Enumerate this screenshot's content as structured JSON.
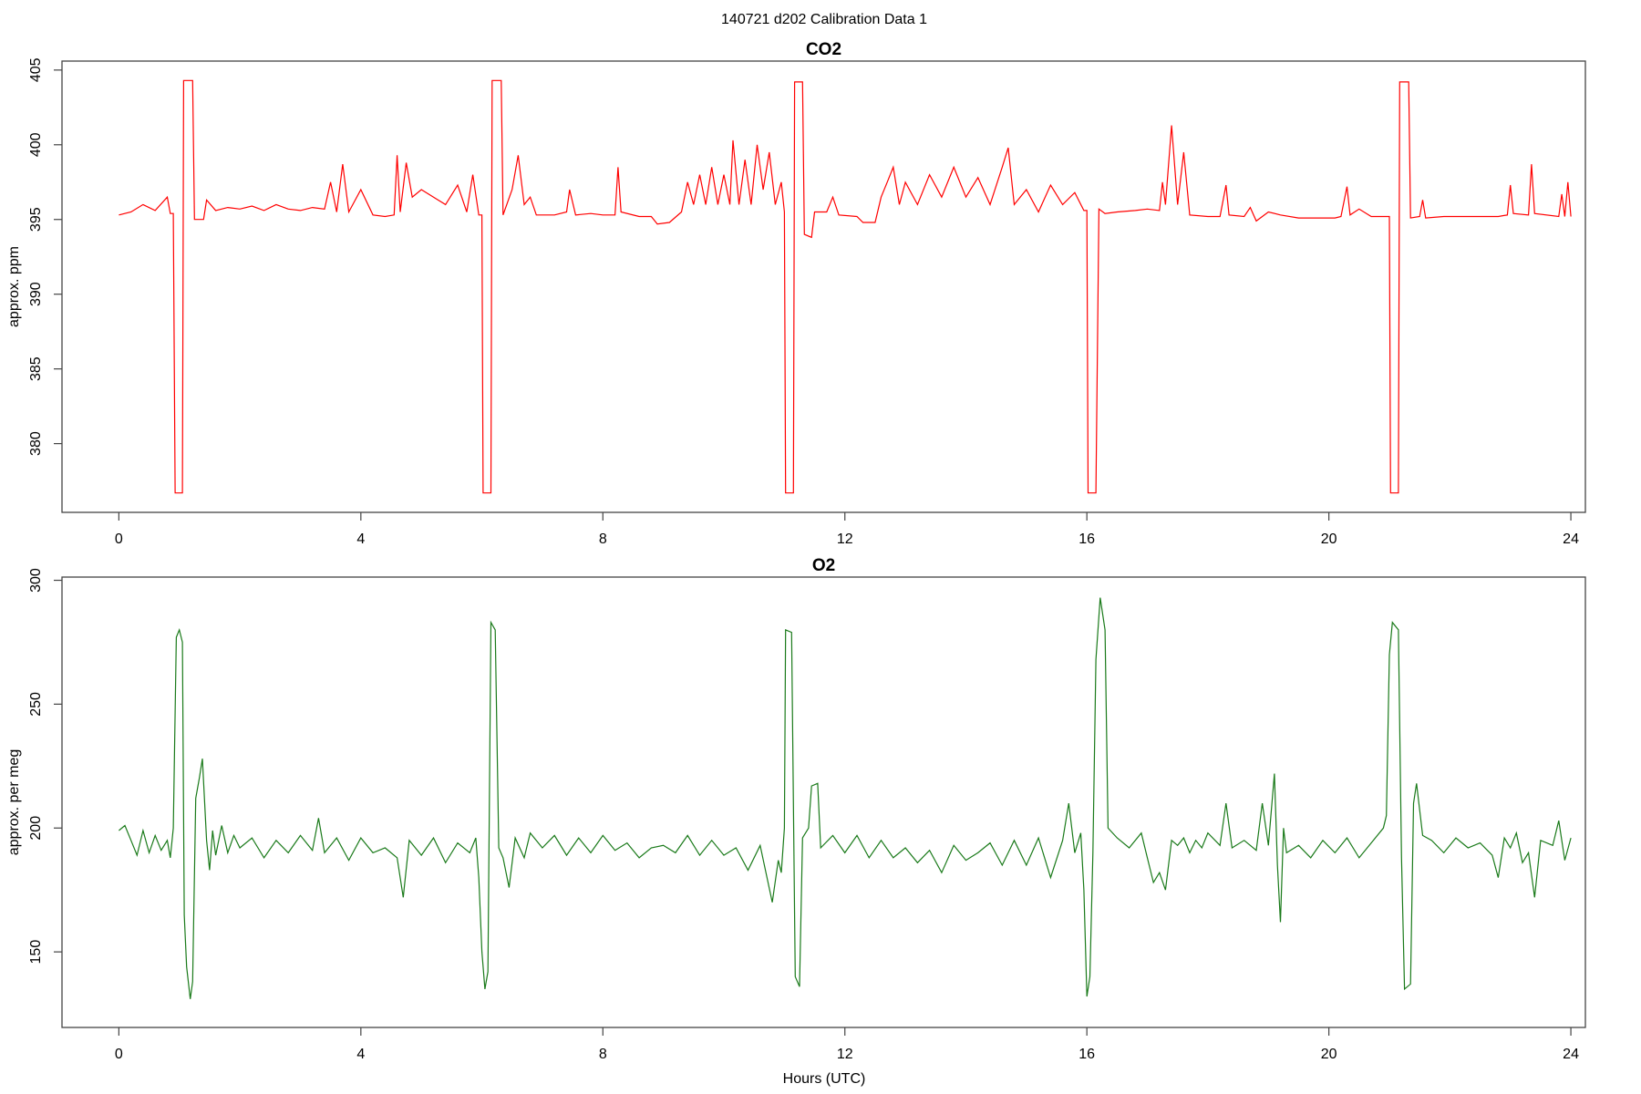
{
  "title": "140721   d202   Calibration Data 1",
  "chart_data": [
    {
      "type": "line",
      "title": "CO2",
      "y_label": "approx. ppm",
      "xlim": [
        -0.94,
        24.24
      ],
      "xticks": [
        0,
        4,
        8,
        12,
        16,
        20,
        24
      ],
      "ylim": [
        375.4,
        405.6
      ],
      "yticks": [
        380,
        385,
        390,
        395,
        400,
        405
      ],
      "series": [
        {
          "color": "#ff0000",
          "x": [
            0,
            0.2,
            0.4,
            0.6,
            0.8,
            0.85,
            0.9,
            0.93,
            1.05,
            1.07,
            1.22,
            1.25,
            1.4,
            1.45,
            1.6,
            1.8,
            2.0,
            2.2,
            2.4,
            2.6,
            2.8,
            3.0,
            3.2,
            3.4,
            3.5,
            3.6,
            3.7,
            3.8,
            4.0,
            4.2,
            4.4,
            4.55,
            4.6,
            4.65,
            4.75,
            4.85,
            5.0,
            5.2,
            5.4,
            5.6,
            5.75,
            5.85,
            5.95,
            6.0,
            6.02,
            6.15,
            6.17,
            6.32,
            6.35,
            6.5,
            6.6,
            6.7,
            6.8,
            6.9,
            7.2,
            7.4,
            7.45,
            7.55,
            7.8,
            8.0,
            8.2,
            8.25,
            8.3,
            8.6,
            8.8,
            8.9,
            9.1,
            9.3,
            9.4,
            9.5,
            9.6,
            9.7,
            9.8,
            9.9,
            10.0,
            10.1,
            10.15,
            10.25,
            10.35,
            10.45,
            10.55,
            10.65,
            10.75,
            10.85,
            10.95,
            11.0,
            11.02,
            11.15,
            11.17,
            11.3,
            11.33,
            11.45,
            11.5,
            11.7,
            11.8,
            11.9,
            12.2,
            12.3,
            12.5,
            12.6,
            12.7,
            12.8,
            12.9,
            13.0,
            13.2,
            13.4,
            13.6,
            13.8,
            14.0,
            14.2,
            14.4,
            14.6,
            14.7,
            14.8,
            15.0,
            15.2,
            15.4,
            15.6,
            15.8,
            15.95,
            16.0,
            16.02,
            16.15,
            16.2,
            16.3,
            16.5,
            16.8,
            17.0,
            17.2,
            17.25,
            17.3,
            17.4,
            17.5,
            17.6,
            17.7,
            18.0,
            18.2,
            18.3,
            18.35,
            18.6,
            18.7,
            18.8,
            19.0,
            19.2,
            19.5,
            19.8,
            20.1,
            20.2,
            20.3,
            20.35,
            20.5,
            20.7,
            21.0,
            21.02,
            21.15,
            21.17,
            21.32,
            21.35,
            21.5,
            21.55,
            21.6,
            21.9,
            22.2,
            22.5,
            22.8,
            22.95,
            23.0,
            23.05,
            23.3,
            23.35,
            23.4,
            23.8,
            23.85,
            23.9,
            23.95,
            24.0
          ],
          "values": [
            395.3,
            395.5,
            396,
            395.6,
            396.5,
            395.4,
            395.4,
            376.7,
            376.7,
            404.3,
            404.3,
            395,
            395,
            396.3,
            395.6,
            395.8,
            395.7,
            395.9,
            395.6,
            396,
            395.7,
            395.6,
            395.8,
            395.7,
            397.5,
            395.5,
            398.7,
            395.5,
            397,
            395.3,
            395.2,
            395.3,
            399.3,
            395.5,
            398.8,
            396.5,
            397,
            396.5,
            396,
            397.3,
            395.5,
            398,
            395.3,
            395.3,
            376.7,
            376.7,
            404.3,
            404.3,
            395.3,
            397,
            399.3,
            396,
            396.5,
            395.3,
            395.3,
            395.5,
            397,
            395.3,
            395.4,
            395.3,
            395.3,
            398.5,
            395.5,
            395.2,
            395.2,
            394.7,
            394.8,
            395.5,
            397.5,
            396,
            398,
            396,
            398.5,
            396,
            398,
            396,
            400.3,
            396,
            399,
            396,
            400,
            397,
            399.5,
            396,
            397.5,
            395.5,
            376.7,
            376.7,
            404.2,
            404.2,
            394,
            393.8,
            395.5,
            395.5,
            396.5,
            395.3,
            395.2,
            394.8,
            394.8,
            396.5,
            397.5,
            398.5,
            396,
            397.5,
            396,
            398,
            396.5,
            398.5,
            396.5,
            397.8,
            396,
            398.5,
            399.8,
            396,
            397,
            395.5,
            397.3,
            396,
            396.8,
            395.6,
            395.6,
            376.7,
            376.7,
            395.7,
            395.4,
            395.5,
            395.6,
            395.7,
            395.6,
            397.5,
            396,
            401.3,
            396,
            399.5,
            395.3,
            395.2,
            395.2,
            397.3,
            395.3,
            395.2,
            395.8,
            394.9,
            395.5,
            395.3,
            395.1,
            395.1,
            395.1,
            395.2,
            397.2,
            395.3,
            395.7,
            395.2,
            395.2,
            376.7,
            376.7,
            404.2,
            404.2,
            395.1,
            395.2,
            396.3,
            395.1,
            395.2,
            395.2,
            395.2,
            395.2,
            395.3,
            397.3,
            395.4,
            395.3,
            398.7,
            395.4,
            395.2,
            396.7,
            395.2,
            397.5,
            395.2
          ]
        }
      ]
    },
    {
      "type": "line",
      "title": "O2",
      "y_label": "approx. per meg",
      "x_label": "Hours (UTC)",
      "xlim": [
        -0.94,
        24.24
      ],
      "xticks": [
        0,
        4,
        8,
        12,
        16,
        20,
        24
      ],
      "ylim": [
        119.5,
        301.3
      ],
      "yticks": [
        150,
        200,
        250,
        300
      ],
      "series": [
        {
          "color": "#1a7a1a",
          "x": [
            0,
            0.1,
            0.2,
            0.3,
            0.4,
            0.5,
            0.6,
            0.7,
            0.8,
            0.85,
            0.9,
            0.95,
            1.0,
            1.05,
            1.08,
            1.12,
            1.18,
            1.22,
            1.27,
            1.33,
            1.38,
            1.45,
            1.5,
            1.55,
            1.6,
            1.7,
            1.8,
            1.9,
            2.0,
            2.2,
            2.4,
            2.6,
            2.8,
            3.0,
            3.2,
            3.3,
            3.4,
            3.6,
            3.8,
            4.0,
            4.2,
            4.4,
            4.6,
            4.7,
            4.8,
            5.0,
            5.2,
            5.4,
            5.6,
            5.8,
            5.9,
            5.95,
            6.0,
            6.05,
            6.1,
            6.15,
            6.22,
            6.28,
            6.35,
            6.45,
            6.55,
            6.7,
            6.8,
            7.0,
            7.2,
            7.4,
            7.6,
            7.8,
            8.0,
            8.2,
            8.4,
            8.6,
            8.8,
            9.0,
            9.2,
            9.4,
            9.6,
            9.8,
            10.0,
            10.2,
            10.4,
            10.6,
            10.8,
            10.9,
            10.95,
            11.0,
            11.02,
            11.12,
            11.18,
            11.25,
            11.3,
            11.4,
            11.45,
            11.55,
            11.6,
            11.8,
            12.0,
            12.2,
            12.4,
            12.6,
            12.8,
            13.0,
            13.2,
            13.4,
            13.6,
            13.8,
            14.0,
            14.2,
            14.4,
            14.6,
            14.8,
            15.0,
            15.2,
            15.4,
            15.6,
            15.7,
            15.8,
            15.9,
            15.95,
            16.0,
            16.05,
            16.1,
            16.15,
            16.22,
            16.3,
            16.35,
            16.5,
            16.7,
            16.9,
            17.0,
            17.1,
            17.2,
            17.3,
            17.4,
            17.5,
            17.6,
            17.7,
            17.8,
            17.9,
            18.0,
            18.2,
            18.3,
            18.4,
            18.6,
            18.8,
            18.9,
            19.0,
            19.1,
            19.15,
            19.2,
            19.25,
            19.3,
            19.5,
            19.7,
            19.9,
            20.1,
            20.3,
            20.5,
            20.7,
            20.9,
            20.95,
            21.0,
            21.05,
            21.15,
            21.2,
            21.25,
            21.35,
            21.4,
            21.45,
            21.55,
            21.7,
            21.9,
            22.1,
            22.3,
            22.5,
            22.7,
            22.8,
            22.9,
            23.0,
            23.1,
            23.2,
            23.3,
            23.4,
            23.5,
            23.7,
            23.8,
            23.9,
            24.0
          ],
          "values": [
            199,
            201,
            195,
            189,
            199,
            190,
            197,
            191,
            195,
            188,
            200,
            277,
            280,
            275,
            165,
            144,
            131,
            138,
            212,
            220,
            228,
            195,
            183,
            199,
            189,
            201,
            190,
            197,
            192,
            196,
            188,
            195,
            190,
            197,
            191,
            204,
            190,
            196,
            187,
            196,
            190,
            192,
            188,
            172,
            195,
            189,
            196,
            186,
            194,
            190,
            196,
            180,
            150,
            135,
            142,
            283,
            280,
            192,
            188,
            176,
            196,
            188,
            198,
            192,
            197,
            189,
            196,
            190,
            197,
            191,
            194,
            188,
            192,
            193,
            190,
            197,
            189,
            195,
            189,
            192,
            183,
            193,
            170,
            187,
            182,
            200,
            280,
            279,
            140,
            136,
            196,
            200,
            217,
            218,
            192,
            197,
            190,
            197,
            188,
            195,
            188,
            192,
            186,
            191,
            182,
            193,
            187,
            190,
            194,
            185,
            195,
            185,
            196,
            180,
            195,
            210,
            190,
            198,
            175,
            132,
            140,
            190,
            268,
            293,
            280,
            200,
            196,
            192,
            198,
            188,
            178,
            182,
            175,
            195,
            193,
            196,
            190,
            195,
            192,
            198,
            193,
            210,
            192,
            195,
            191,
            210,
            193,
            222,
            185,
            162,
            200,
            190,
            193,
            188,
            195,
            190,
            196,
            188,
            194,
            200,
            205,
            270,
            283,
            280,
            188,
            135,
            137,
            210,
            218,
            197,
            195,
            190,
            196,
            192,
            194,
            189,
            180,
            196,
            192,
            198,
            186,
            190,
            172,
            195,
            193,
            203,
            187,
            196
          ]
        }
      ]
    }
  ]
}
